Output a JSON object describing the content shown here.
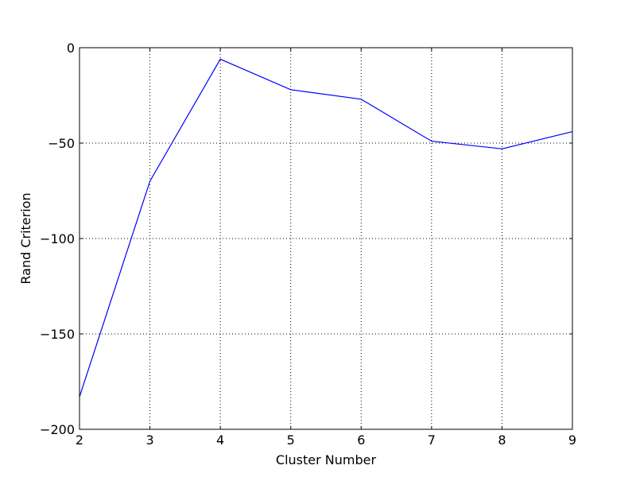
{
  "chart_data": {
    "type": "line",
    "title": "",
    "xlabel": "Cluster Number",
    "ylabel": "Rand Criterion",
    "xlim": [
      2,
      9
    ],
    "ylim": [
      -200,
      0
    ],
    "xticks": [
      "2",
      "3",
      "4",
      "5",
      "6",
      "7",
      "8",
      "9"
    ],
    "yticks": [
      "0",
      "−50",
      "−100",
      "−150",
      "−200"
    ],
    "grid": true,
    "legend": "none",
    "series": [
      {
        "x": [
          2,
          3,
          4,
          5,
          6,
          7,
          8,
          9
        ],
        "y": [
          -183,
          -70,
          -6,
          -22,
          -27,
          -49,
          -53,
          -44
        ]
      }
    ],
    "colors": {
      "line": "#0000ff",
      "axes": "#000000",
      "grid": "#000000"
    }
  }
}
